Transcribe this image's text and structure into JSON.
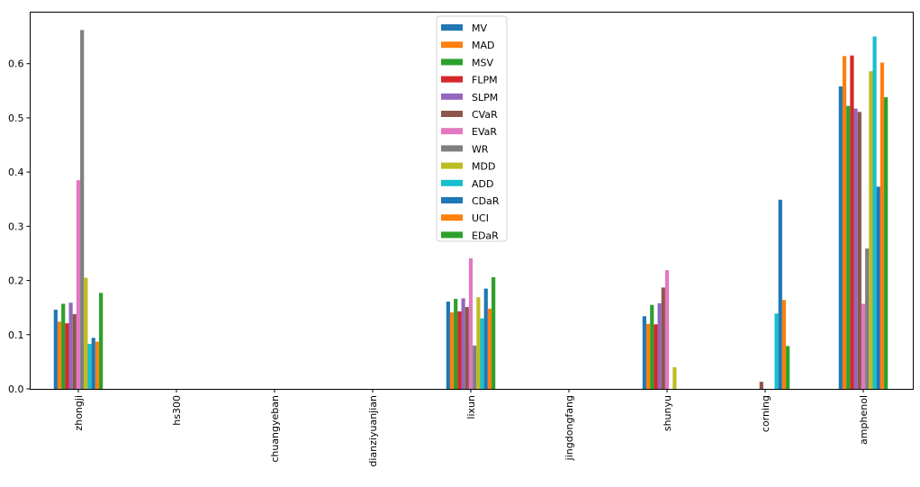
{
  "chart_data": {
    "type": "bar",
    "title": "",
    "xlabel": "",
    "ylabel": "",
    "ylim": [
      0,
      0.695
    ],
    "yticks": [
      "0.0",
      "0.1",
      "0.2",
      "0.3",
      "0.4",
      "0.5",
      "0.6"
    ],
    "legend_position": "top-center",
    "categories": [
      "zhongji",
      "hs300",
      "chuangyeban",
      "dianziyuanjian",
      "lixun",
      "jingdongfang",
      "shunyu",
      "corning",
      "amphenol"
    ],
    "series": [
      {
        "name": "MV",
        "color": "#1f77b4",
        "values": [
          0.146,
          0,
          0,
          0,
          0.161,
          0,
          0.134,
          0,
          0.558
        ]
      },
      {
        "name": "MAD",
        "color": "#ff7f0e",
        "values": [
          0.124,
          0,
          0,
          0,
          0.141,
          0,
          0.12,
          0,
          0.614
        ]
      },
      {
        "name": "MSV",
        "color": "#2ca02c",
        "values": [
          0.157,
          0,
          0,
          0,
          0.166,
          0,
          0.155,
          0,
          0.522
        ]
      },
      {
        "name": "FLPM",
        "color": "#d62728",
        "values": [
          0.121,
          0,
          0,
          0,
          0.143,
          0,
          0.119,
          0,
          0.615
        ]
      },
      {
        "name": "SLPM",
        "color": "#9467bd",
        "values": [
          0.159,
          0,
          0,
          0,
          0.167,
          0,
          0.158,
          0,
          0.517
        ]
      },
      {
        "name": "CVaR",
        "color": "#8c564b",
        "values": [
          0.138,
          0,
          0,
          0,
          0.151,
          0,
          0.187,
          0.013,
          0.511
        ]
      },
      {
        "name": "EVaR",
        "color": "#e377c2",
        "values": [
          0.385,
          0,
          0,
          0,
          0.241,
          0,
          0.219,
          0,
          0.157
        ]
      },
      {
        "name": "WR",
        "color": "#7f7f7f",
        "values": [
          0.662,
          0,
          0,
          0,
          0.08,
          0,
          0,
          0,
          0.259
        ]
      },
      {
        "name": "MDD",
        "color": "#bcbd22",
        "values": [
          0.205,
          0,
          0,
          0,
          0.169,
          0,
          0.04,
          0,
          0.586
        ]
      },
      {
        "name": "ADD",
        "color": "#17becf",
        "values": [
          0.083,
          0,
          0,
          0,
          0.13,
          0,
          0,
          0.139,
          0.65
        ]
      },
      {
        "name": "CDaR",
        "color": "#1f77b4",
        "values": [
          0.094,
          0,
          0,
          0,
          0.185,
          0,
          0,
          0.349,
          0.373
        ]
      },
      {
        "name": "UCI",
        "color": "#ff7f0e",
        "values": [
          0.087,
          0,
          0,
          0,
          0.148,
          0,
          0,
          0.164,
          0.602
        ]
      },
      {
        "name": "EDaR",
        "color": "#2ca02c",
        "values": [
          0.177,
          0,
          0,
          0,
          0.206,
          0,
          0,
          0.079,
          0.538
        ]
      }
    ]
  }
}
